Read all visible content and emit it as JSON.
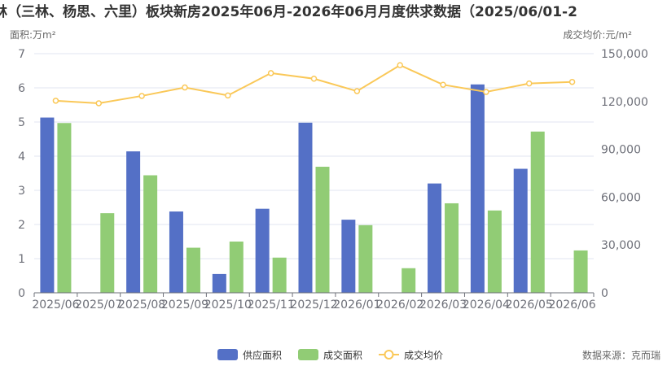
{
  "chart_data": {
    "type": "bar",
    "title": "林（三林、杨思、六里）板块新房2025年06月-2026年06月月度供求数据（2025/06/01-2",
    "categories": [
      "2025/06",
      "2025/07",
      "2025/08",
      "2025/09",
      "2025/10",
      "2025/11",
      "2025/12",
      "2026/01",
      "2026/02",
      "2026/03",
      "2026/04",
      "2026/05",
      "2026/06"
    ],
    "ylabel": "面积:万m²",
    "y2label": "成交均价:元/m²",
    "ylim": [
      0,
      7
    ],
    "y2lim": [
      0,
      150000
    ],
    "yticks": [
      "0",
      "1",
      "2",
      "3",
      "4",
      "5",
      "6",
      "7"
    ],
    "y2ticks": [
      "0",
      "30,000",
      "60,000",
      "90,000",
      "120,000",
      "150,000"
    ],
    "grid": true,
    "legend_position": "bottom",
    "series": [
      {
        "name": "供应面积",
        "kind": "bar",
        "axis": "left",
        "color": "#5470c6",
        "values": [
          5.13,
          null,
          4.14,
          2.38,
          0.55,
          2.46,
          4.98,
          2.14,
          null,
          3.2,
          6.1,
          3.63,
          null
        ]
      },
      {
        "name": "成交面积",
        "kind": "bar",
        "axis": "left",
        "color": "#91cc75",
        "values": [
          4.97,
          2.33,
          3.44,
          1.32,
          1.5,
          1.03,
          3.69,
          1.98,
          0.72,
          2.62,
          2.41,
          4.72,
          1.24
        ]
      },
      {
        "name": "成交均价",
        "kind": "line",
        "axis": "right",
        "color": "#fac858",
        "values": [
          120500,
          118900,
          123500,
          128800,
          123800,
          137800,
          134300,
          126500,
          142800,
          130500,
          126000,
          131300,
          132300
        ]
      }
    ]
  },
  "source_text": "数据来源：克而瑞"
}
